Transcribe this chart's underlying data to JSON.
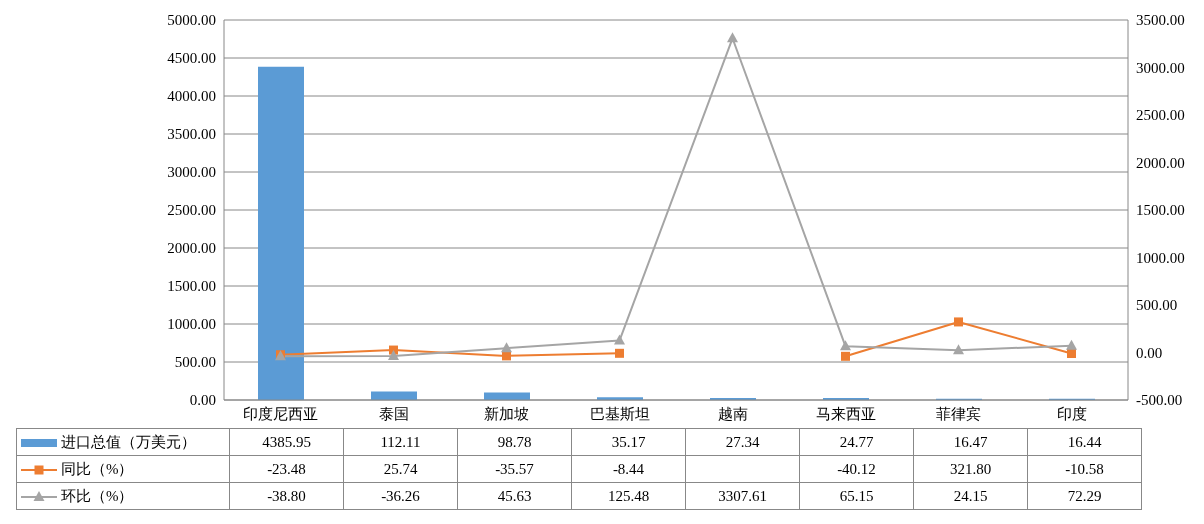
{
  "chart_data": {
    "type": "bar",
    "categories": [
      "印度尼西亚",
      "泰国",
      "新加坡",
      "巴基斯坦",
      "越南",
      "马来西亚",
      "菲律宾",
      "印度"
    ],
    "series": [
      {
        "name": "进口总值（万美元）",
        "color": "#5b9bd5",
        "values": [
          4385.95,
          112.11,
          98.78,
          35.17,
          27.34,
          24.77,
          16.47,
          16.44
        ],
        "value_labels": [
          "4385.95",
          "112.11",
          "98.78",
          "35.17",
          "27.34",
          "24.77",
          "16.47",
          "16.44"
        ]
      },
      {
        "name": "同比（%）",
        "type": "line",
        "axis": "y2",
        "color": "#ed7d31",
        "marker": "square",
        "values": [
          -23.48,
          25.74,
          -35.57,
          -8.44,
          null,
          -40.12,
          321.8,
          -10.58
        ],
        "value_labels": [
          "-23.48",
          "25.74",
          "-35.57",
          "-8.44",
          null,
          "-40.12",
          "321.80",
          "-10.58"
        ]
      },
      {
        "name": "环比（%）",
        "type": "line",
        "axis": "y2",
        "color": "#a5a5a5",
        "marker": "triangle",
        "values": [
          -38.8,
          -36.26,
          45.63,
          125.48,
          3307.61,
          65.15,
          24.15,
          72.29
        ],
        "value_labels": [
          "-38.80",
          "-36.26",
          "45.63",
          "125.48",
          "3307.61",
          "65.15",
          "24.15",
          "72.29"
        ]
      }
    ],
    "ylim": [
      0,
      5000
    ],
    "yticks": [
      {
        "value": 0,
        "label": "0.00"
      },
      {
        "value": 500,
        "label": "500.00"
      },
      {
        "value": 1000,
        "label": "1000.00"
      },
      {
        "value": 1500,
        "label": "1500.00"
      },
      {
        "value": 2000,
        "label": "2000.00"
      },
      {
        "value": 2500,
        "label": "2500.00"
      },
      {
        "value": 3000,
        "label": "3000.00"
      },
      {
        "value": 3500,
        "label": "3500.00"
      },
      {
        "value": 4000,
        "label": "4000.00"
      },
      {
        "value": 4500,
        "label": "4500.00"
      },
      {
        "value": 5000,
        "label": "5000.00"
      }
    ],
    "y2lim": [
      -500,
      3500
    ],
    "y2ticks": [
      {
        "value": -500,
        "label": "-500.00"
      },
      {
        "value": 0,
        "label": "0.00"
      },
      {
        "value": 500,
        "label": "500.00"
      },
      {
        "value": 1000,
        "label": "1000.00"
      },
      {
        "value": 1500,
        "label": "1500.00"
      },
      {
        "value": 2000,
        "label": "2000.00"
      },
      {
        "value": 2500,
        "label": "2500.00"
      },
      {
        "value": 3000,
        "label": "3000.00"
      },
      {
        "value": 3500,
        "label": "3500.00"
      }
    ],
    "grid": "y",
    "legend": "bottom",
    "line_style": "solid"
  }
}
